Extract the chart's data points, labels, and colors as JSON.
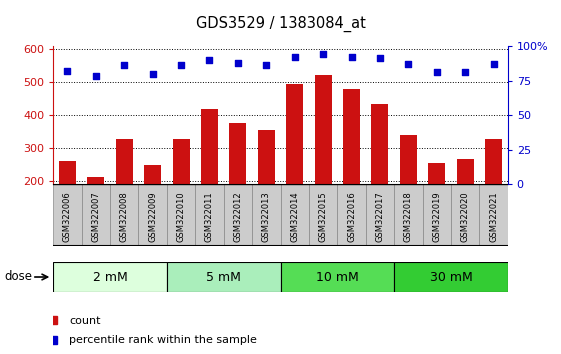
{
  "title": "GDS3529 / 1383084_at",
  "samples": [
    "GSM322006",
    "GSM322007",
    "GSM322008",
    "GSM322009",
    "GSM322010",
    "GSM322011",
    "GSM322012",
    "GSM322013",
    "GSM322014",
    "GSM322015",
    "GSM322016",
    "GSM322017",
    "GSM322018",
    "GSM322019",
    "GSM322020",
    "GSM322021"
  ],
  "counts": [
    260,
    213,
    328,
    249,
    328,
    418,
    375,
    355,
    493,
    522,
    480,
    435,
    338,
    255,
    265,
    328
  ],
  "percentiles": [
    82,
    78,
    86,
    80,
    86,
    90,
    88,
    86,
    92,
    94,
    92,
    91,
    87,
    81,
    81,
    87
  ],
  "bar_color": "#cc1111",
  "dot_color": "#0000cc",
  "ylim_left": [
    190,
    610
  ],
  "ylim_right": [
    0,
    100
  ],
  "yticks_left": [
    200,
    300,
    400,
    500,
    600
  ],
  "yticks_right": [
    0,
    25,
    50,
    75,
    100
  ],
  "ytick_labels_right": [
    "0",
    "25",
    "50",
    "75",
    "100%"
  ],
  "doses": [
    {
      "label": "2 mM",
      "start": 0,
      "end": 4,
      "color": "#ddffdd"
    },
    {
      "label": "5 mM",
      "start": 4,
      "end": 8,
      "color": "#aaeebb"
    },
    {
      "label": "10 mM",
      "start": 8,
      "end": 12,
      "color": "#55dd55"
    },
    {
      "label": "30 mM",
      "start": 12,
      "end": 16,
      "color": "#33cc33"
    }
  ],
  "legend_count_color": "#cc1111",
  "legend_dot_color": "#0000cc",
  "axis_left_color": "#cc1111",
  "axis_right_color": "#0000cc",
  "xtick_bg": "#cccccc",
  "plot_bg": "#ffffff",
  "grid_linestyle": "dotted",
  "dose_label": "dose",
  "bar_bottom": 190
}
